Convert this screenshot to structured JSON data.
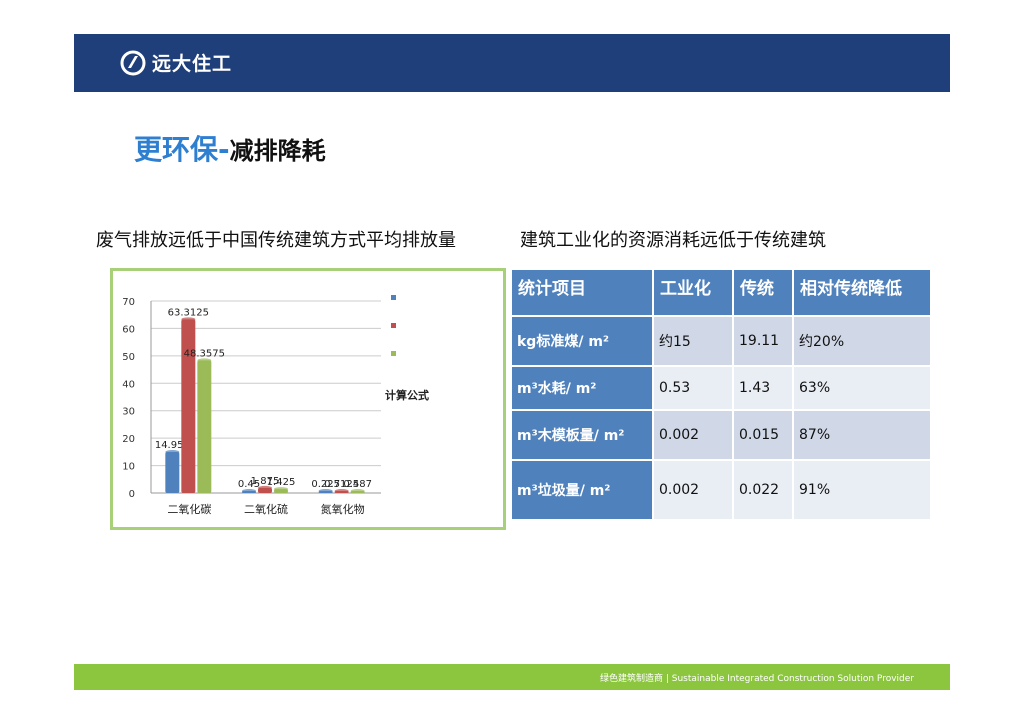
{
  "header": {
    "brand": "远大住工",
    "color": "#1f3f7a"
  },
  "title": {
    "main": "更环保-",
    "sub": "减排降耗"
  },
  "subtitles": {
    "left": "废气排放远低于中国传统建筑方式平均排放量",
    "right": "建筑工业化的资源消耗远低于传统建筑"
  },
  "chart_data": {
    "type": "bar",
    "categories": [
      "二氧化碳",
      "二氧化硫",
      "氮氧化物"
    ],
    "series": [
      {
        "name": "",
        "color": "#4f81bd",
        "values": [
          14.955,
          0.45,
          0.225
        ]
      },
      {
        "name": "",
        "color": "#c0504d",
        "values": [
          63.3125,
          1.875,
          0.7125
        ]
      },
      {
        "name": "",
        "color": "#9bbb59",
        "values": [
          48.3575,
          1.425,
          0.487
        ]
      }
    ],
    "y_ticks": [
      "0",
      "10",
      "20",
      "30",
      "40",
      "50",
      "60",
      "70"
    ],
    "ylim": [
      0,
      70
    ],
    "value_labels": [
      "14.955",
      "63.3125",
      "48.3575",
      "0.45",
      "1.875",
      "1.425",
      "0.225",
      "0.7125",
      "0.487"
    ],
    "grid": true,
    "legend_position": "right",
    "formula_title": "计算公式",
    "formula_lines": [
      "",
      "",
      "",
      "",
      "",
      "",
      "",
      "",
      "",
      ""
    ]
  },
  "table": {
    "headers": [
      "统计项目",
      "工业化",
      "传统",
      "相对传统降低"
    ],
    "rows": [
      [
        "kg标准煤/ m²",
        "约15",
        "19.11",
        "约20%"
      ],
      [
        "m³水耗/ m²",
        "0.53",
        "1.43",
        "63%"
      ],
      [
        "m³木模板量/ m²",
        "0.002",
        "0.015",
        "87%"
      ],
      [
        "m³垃圾量/ m²",
        "0.002",
        "0.022",
        "91%"
      ]
    ],
    "header_color": "#4f81bd"
  },
  "footer": {
    "text": "绿色建筑制造商 | Sustainable Integrated Construction Solution Provider",
    "color": "#8cc63f"
  }
}
